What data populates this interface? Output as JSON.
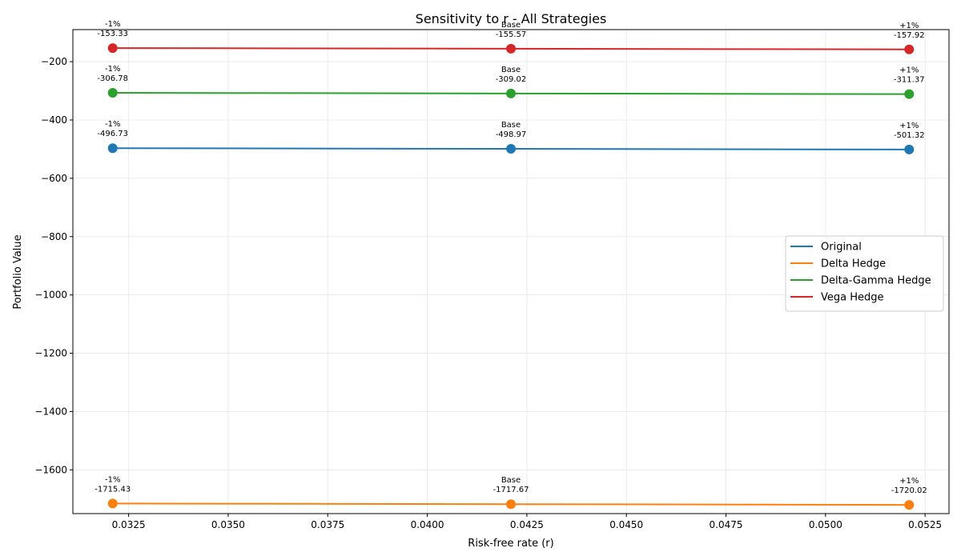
{
  "chart_data": {
    "type": "line",
    "title": "Sensitivity to r - All Strategies",
    "xlabel": "Risk-free rate (r)",
    "ylabel": "Portfolio Value",
    "x": [
      0.0321,
      0.0421,
      0.0521
    ],
    "point_labels": [
      "-1%",
      "Base",
      "+1%"
    ],
    "xlim": [
      0.0311,
      0.0531
    ],
    "ylim": [
      -1750,
      -90
    ],
    "xticks": [
      0.0325,
      0.035,
      0.0375,
      0.04,
      0.0425,
      0.045,
      0.0475,
      0.05,
      0.0525
    ],
    "xtick_labels": [
      "0.0325",
      "0.0350",
      "0.0375",
      "0.0400",
      "0.0425",
      "0.0450",
      "0.0475",
      "0.0500",
      "0.0525"
    ],
    "yticks": [
      -200,
      -400,
      -600,
      -800,
      -1000,
      -1200,
      -1400,
      -1600
    ],
    "ytick_labels": [
      "−200",
      "−400",
      "−600",
      "−800",
      "−1000",
      "−1200",
      "−1400",
      "−1600"
    ],
    "grid": true,
    "legend_position": "center-right",
    "series": [
      {
        "name": "Original",
        "color": "#1f77b4",
        "values": [
          -496.73,
          -498.97,
          -501.32
        ],
        "value_labels": [
          "-496.73",
          "-498.97",
          "-501.32"
        ]
      },
      {
        "name": "Delta Hedge",
        "color": "#ff7f0e",
        "values": [
          -1715.43,
          -1717.67,
          -1720.02
        ],
        "value_labels": [
          "-1715.43",
          "-1717.67",
          "-1720.02"
        ]
      },
      {
        "name": "Delta-Gamma Hedge",
        "color": "#2ca02c",
        "values": [
          -306.78,
          -309.02,
          -311.37
        ],
        "value_labels": [
          "-306.78",
          "-309.02",
          "-311.37"
        ]
      },
      {
        "name": "Vega Hedge",
        "color": "#d62728",
        "values": [
          -153.33,
          -155.57,
          -157.92
        ],
        "value_labels": [
          "-153.33",
          "-155.57",
          "-157.92"
        ]
      }
    ]
  }
}
